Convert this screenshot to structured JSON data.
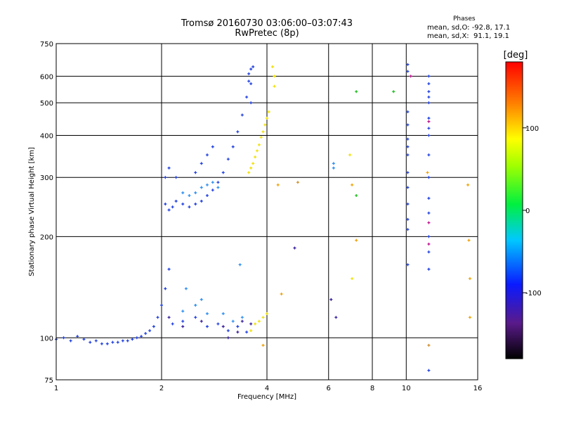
{
  "title_line1": "Tromsø 20160730 03:06:00–03:07:43",
  "title_line2": "RwPretec (8p)",
  "phase_header": "Phases",
  "phase_stats": [
    "mean, sd,O: -92.8, 17.1",
    "mean, sd,X:  91.1, 19.1"
  ],
  "colorbar": {
    "label": "[deg]",
    "ticks": [
      "100",
      "0",
      "-100"
    ],
    "tick_values": [
      100,
      0,
      -100
    ],
    "range": [
      -180,
      180
    ]
  },
  "chart_data": {
    "type": "scatter",
    "xlabel": "Frequency [MHz]",
    "ylabel": "Stationary phase Virtual Height [km]",
    "x_scale": "log",
    "y_scale": "log",
    "xlim": [
      1,
      16
    ],
    "ylim": [
      75,
      750
    ],
    "x_ticks": [
      1,
      2,
      4,
      6,
      8,
      10,
      16
    ],
    "x_tick_labels": [
      "1",
      "2",
      "4",
      "6",
      "8",
      "10",
      "16"
    ],
    "y_ticks": [
      75,
      100,
      200,
      300,
      400,
      500,
      600,
      750
    ],
    "y_tick_labels": [
      "75",
      "100",
      "200",
      "300",
      "400",
      "500",
      "600",
      "750"
    ],
    "grid": true,
    "series": [
      {
        "color": "#1f3fe0",
        "points": [
          [
            1.0,
            99
          ],
          [
            1.05,
            100
          ],
          [
            1.1,
            98
          ],
          [
            1.15,
            101
          ],
          [
            1.2,
            99
          ],
          [
            1.25,
            97
          ],
          [
            1.3,
            98
          ],
          [
            1.35,
            96
          ],
          [
            1.4,
            96
          ],
          [
            1.45,
            97
          ],
          [
            1.5,
            97
          ],
          [
            1.55,
            98
          ],
          [
            1.6,
            98
          ],
          [
            1.65,
            99
          ],
          [
            1.7,
            100
          ],
          [
            1.75,
            101
          ],
          [
            1.8,
            103
          ],
          [
            1.85,
            105
          ],
          [
            1.9,
            108
          ],
          [
            1.95,
            115
          ],
          [
            2.0,
            125
          ],
          [
            2.05,
            140
          ],
          [
            2.1,
            160
          ],
          [
            2.15,
            110
          ],
          [
            2.3,
            112
          ],
          [
            2.5,
            115
          ],
          [
            2.7,
            108
          ],
          [
            2.9,
            110
          ],
          [
            3.1,
            105
          ],
          [
            3.3,
            108
          ],
          [
            3.5,
            104
          ],
          [
            2.05,
            250
          ],
          [
            2.1,
            240
          ],
          [
            2.15,
            245
          ],
          [
            2.2,
            255
          ],
          [
            2.3,
            250
          ],
          [
            2.4,
            245
          ],
          [
            2.5,
            250
          ],
          [
            2.6,
            255
          ],
          [
            2.7,
            265
          ],
          [
            2.8,
            275
          ],
          [
            2.9,
            290
          ],
          [
            3.0,
            310
          ],
          [
            3.1,
            340
          ],
          [
            3.2,
            370
          ],
          [
            3.3,
            410
          ],
          [
            3.4,
            460
          ],
          [
            3.5,
            520
          ],
          [
            3.55,
            580
          ],
          [
            3.6,
            630
          ],
          [
            3.65,
            640
          ],
          [
            2.05,
            300
          ],
          [
            2.1,
            320
          ],
          [
            2.2,
            300
          ],
          [
            3.55,
            610
          ],
          [
            3.6,
            570
          ],
          [
            3.6,
            500
          ],
          [
            2.5,
            310
          ],
          [
            2.6,
            330
          ],
          [
            2.7,
            350
          ],
          [
            2.8,
            370
          ]
        ]
      },
      {
        "color": "#2d8ff0",
        "points": [
          [
            2.3,
            270
          ],
          [
            2.4,
            265
          ],
          [
            2.5,
            270
          ],
          [
            2.6,
            280
          ],
          [
            2.7,
            285
          ],
          [
            2.8,
            290
          ],
          [
            2.9,
            280
          ],
          [
            2.3,
            120
          ],
          [
            2.5,
            125
          ],
          [
            2.7,
            118
          ],
          [
            3.0,
            118
          ],
          [
            3.2,
            112
          ],
          [
            3.4,
            115
          ],
          [
            6.2,
            320
          ],
          [
            6.2,
            330
          ],
          [
            3.35,
            165
          ],
          [
            2.35,
            140
          ],
          [
            2.6,
            130
          ]
        ]
      },
      {
        "color": "#3a1f9c",
        "points": [
          [
            2.1,
            115
          ],
          [
            2.3,
            108
          ],
          [
            2.6,
            112
          ],
          [
            3.0,
            108
          ],
          [
            3.4,
            112
          ],
          [
            3.6,
            110
          ],
          [
            3.1,
            100
          ],
          [
            3.3,
            104
          ],
          [
            4.8,
            185
          ],
          [
            6.1,
            130
          ],
          [
            6.3,
            115
          ]
        ]
      },
      {
        "color": "#f0e000",
        "points": [
          [
            3.55,
            310
          ],
          [
            3.6,
            320
          ],
          [
            3.65,
            330
          ],
          [
            3.7,
            345
          ],
          [
            3.75,
            360
          ],
          [
            3.8,
            375
          ],
          [
            3.85,
            395
          ],
          [
            3.9,
            410
          ],
          [
            3.95,
            430
          ],
          [
            4.0,
            450
          ],
          [
            4.05,
            470
          ],
          [
            3.7,
            110
          ],
          [
            3.8,
            112
          ],
          [
            3.9,
            115
          ],
          [
            4.0,
            118
          ],
          [
            3.6,
            105
          ],
          [
            4.15,
            640
          ],
          [
            4.2,
            600
          ],
          [
            4.2,
            560
          ],
          [
            7.0,
            150
          ],
          [
            6.9,
            350
          ]
        ]
      },
      {
        "color": "#f0a000",
        "points": [
          [
            4.3,
            285
          ],
          [
            4.4,
            135
          ],
          [
            3.9,
            95
          ],
          [
            7.2,
            195
          ],
          [
            7.0,
            285
          ],
          [
            15.0,
            285
          ],
          [
            15.1,
            195
          ],
          [
            15.2,
            150
          ],
          [
            15.2,
            115
          ],
          [
            11.5,
            310
          ]
        ]
      },
      {
        "color": "#20c020",
        "points": [
          [
            7.2,
            540
          ],
          [
            9.2,
            540
          ],
          [
            7.2,
            265
          ]
        ]
      },
      {
        "color": "#1f3fe0",
        "points": [
          [
            10.1,
            650
          ],
          [
            10.1,
            620
          ],
          [
            10.1,
            470
          ],
          [
            10.1,
            430
          ],
          [
            10.1,
            390
          ],
          [
            10.1,
            370
          ],
          [
            10.1,
            350
          ],
          [
            10.1,
            310
          ],
          [
            10.1,
            280
          ],
          [
            10.1,
            250
          ],
          [
            10.1,
            225
          ],
          [
            10.1,
            210
          ],
          [
            10.1,
            165
          ],
          [
            11.6,
            600
          ],
          [
            11.6,
            570
          ],
          [
            11.6,
            540
          ],
          [
            11.6,
            520
          ],
          [
            11.6,
            500
          ],
          [
            11.6,
            450
          ],
          [
            11.6,
            420
          ],
          [
            11.6,
            400
          ],
          [
            11.6,
            350
          ],
          [
            11.6,
            300
          ],
          [
            11.6,
            260
          ],
          [
            11.6,
            235
          ],
          [
            11.6,
            200
          ],
          [
            11.6,
            180
          ],
          [
            11.6,
            160
          ],
          [
            11.6,
            80
          ]
        ]
      },
      {
        "color": "#c01090",
        "points": [
          [
            11.6,
            440
          ],
          [
            11.6,
            220
          ],
          [
            11.6,
            190
          ],
          [
            10.3,
            600
          ]
        ]
      },
      {
        "color": "#d09030",
        "points": [
          [
            4.9,
            290
          ],
          [
            11.6,
            95
          ]
        ]
      }
    ]
  }
}
